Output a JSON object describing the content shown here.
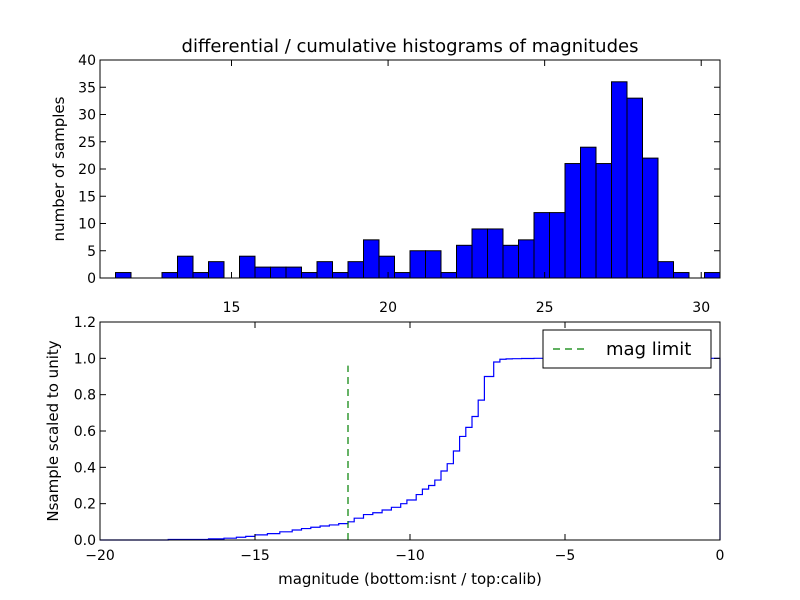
{
  "title": "differential / cumulative histograms of magnitudes",
  "colors": {
    "bar": "#0000ff",
    "cumulative": "#0000ff",
    "limit": "#008000"
  },
  "chart_data": [
    {
      "type": "bar",
      "ylabel": "number of samples",
      "xlim": [
        10.8,
        30.6
      ],
      "ylim": [
        0,
        40
      ],
      "xticks": [
        "15",
        "20",
        "25",
        "30"
      ],
      "yticks": [
        "0",
        "5",
        "10",
        "15",
        "20",
        "25",
        "30",
        "35",
        "40"
      ],
      "bin_start": 10.8,
      "bin_width": 0.495,
      "values": [
        0,
        1,
        0,
        0,
        1,
        4,
        1,
        3,
        0,
        4,
        2,
        2,
        2,
        1,
        3,
        1,
        3,
        7,
        4,
        1,
        5,
        5,
        1,
        6,
        9,
        9,
        6,
        7,
        12,
        12,
        21,
        24,
        21,
        36,
        33,
        22,
        3,
        1,
        0,
        1
      ]
    },
    {
      "type": "line",
      "xlabel": "magnitude (bottom:isnt / top:calib)",
      "ylabel": "Nsample scaled to unity",
      "xlim": [
        -20,
        0
      ],
      "ylim": [
        0,
        1.2
      ],
      "xticks": [
        "−20",
        "−15",
        "−10",
        "−5",
        "0"
      ],
      "yticks": [
        "0.0",
        "0.2",
        "0.4",
        "0.6",
        "0.8",
        "1.0",
        "1.2"
      ],
      "series": [
        {
          "kind": "step",
          "x": [
            -20,
            -17.8,
            -16.5,
            -16,
            -15.6,
            -15.3,
            -15,
            -14.6,
            -14.2,
            -13.8,
            -13.5,
            -13.2,
            -12.9,
            -12.6,
            -12.3,
            -12,
            -11.8,
            -11.5,
            -11.2,
            -10.9,
            -10.6,
            -10.3,
            -10.1,
            -9.8,
            -9.6,
            -9.4,
            -9.2,
            -9,
            -8.8,
            -8.6,
            -8.4,
            -8.2,
            -8,
            -7.8,
            -7.6,
            -7.3,
            -7.1,
            -6.9,
            -6.7,
            -6.4,
            -6,
            -5.5,
            -5,
            -4.5,
            -4,
            -3.5,
            -3,
            -2,
            0
          ],
          "y": [
            0,
            0.003,
            0.006,
            0.01,
            0.015,
            0.02,
            0.028,
            0.035,
            0.045,
            0.055,
            0.063,
            0.07,
            0.077,
            0.083,
            0.09,
            0.1,
            0.12,
            0.14,
            0.15,
            0.165,
            0.18,
            0.2,
            0.22,
            0.25,
            0.28,
            0.3,
            0.33,
            0.38,
            0.42,
            0.49,
            0.57,
            0.62,
            0.68,
            0.77,
            0.9,
            0.98,
            0.995,
            0.997,
            0.998,
            0.999,
            1,
            1,
            1,
            1,
            1,
            1,
            1,
            1,
            0
          ]
        },
        {
          "name": "mag limit",
          "kind": "vline",
          "x": -12,
          "y": [
            0,
            0.96
          ]
        }
      ],
      "legend": {
        "position": "top-right",
        "label": "mag limit"
      }
    }
  ]
}
